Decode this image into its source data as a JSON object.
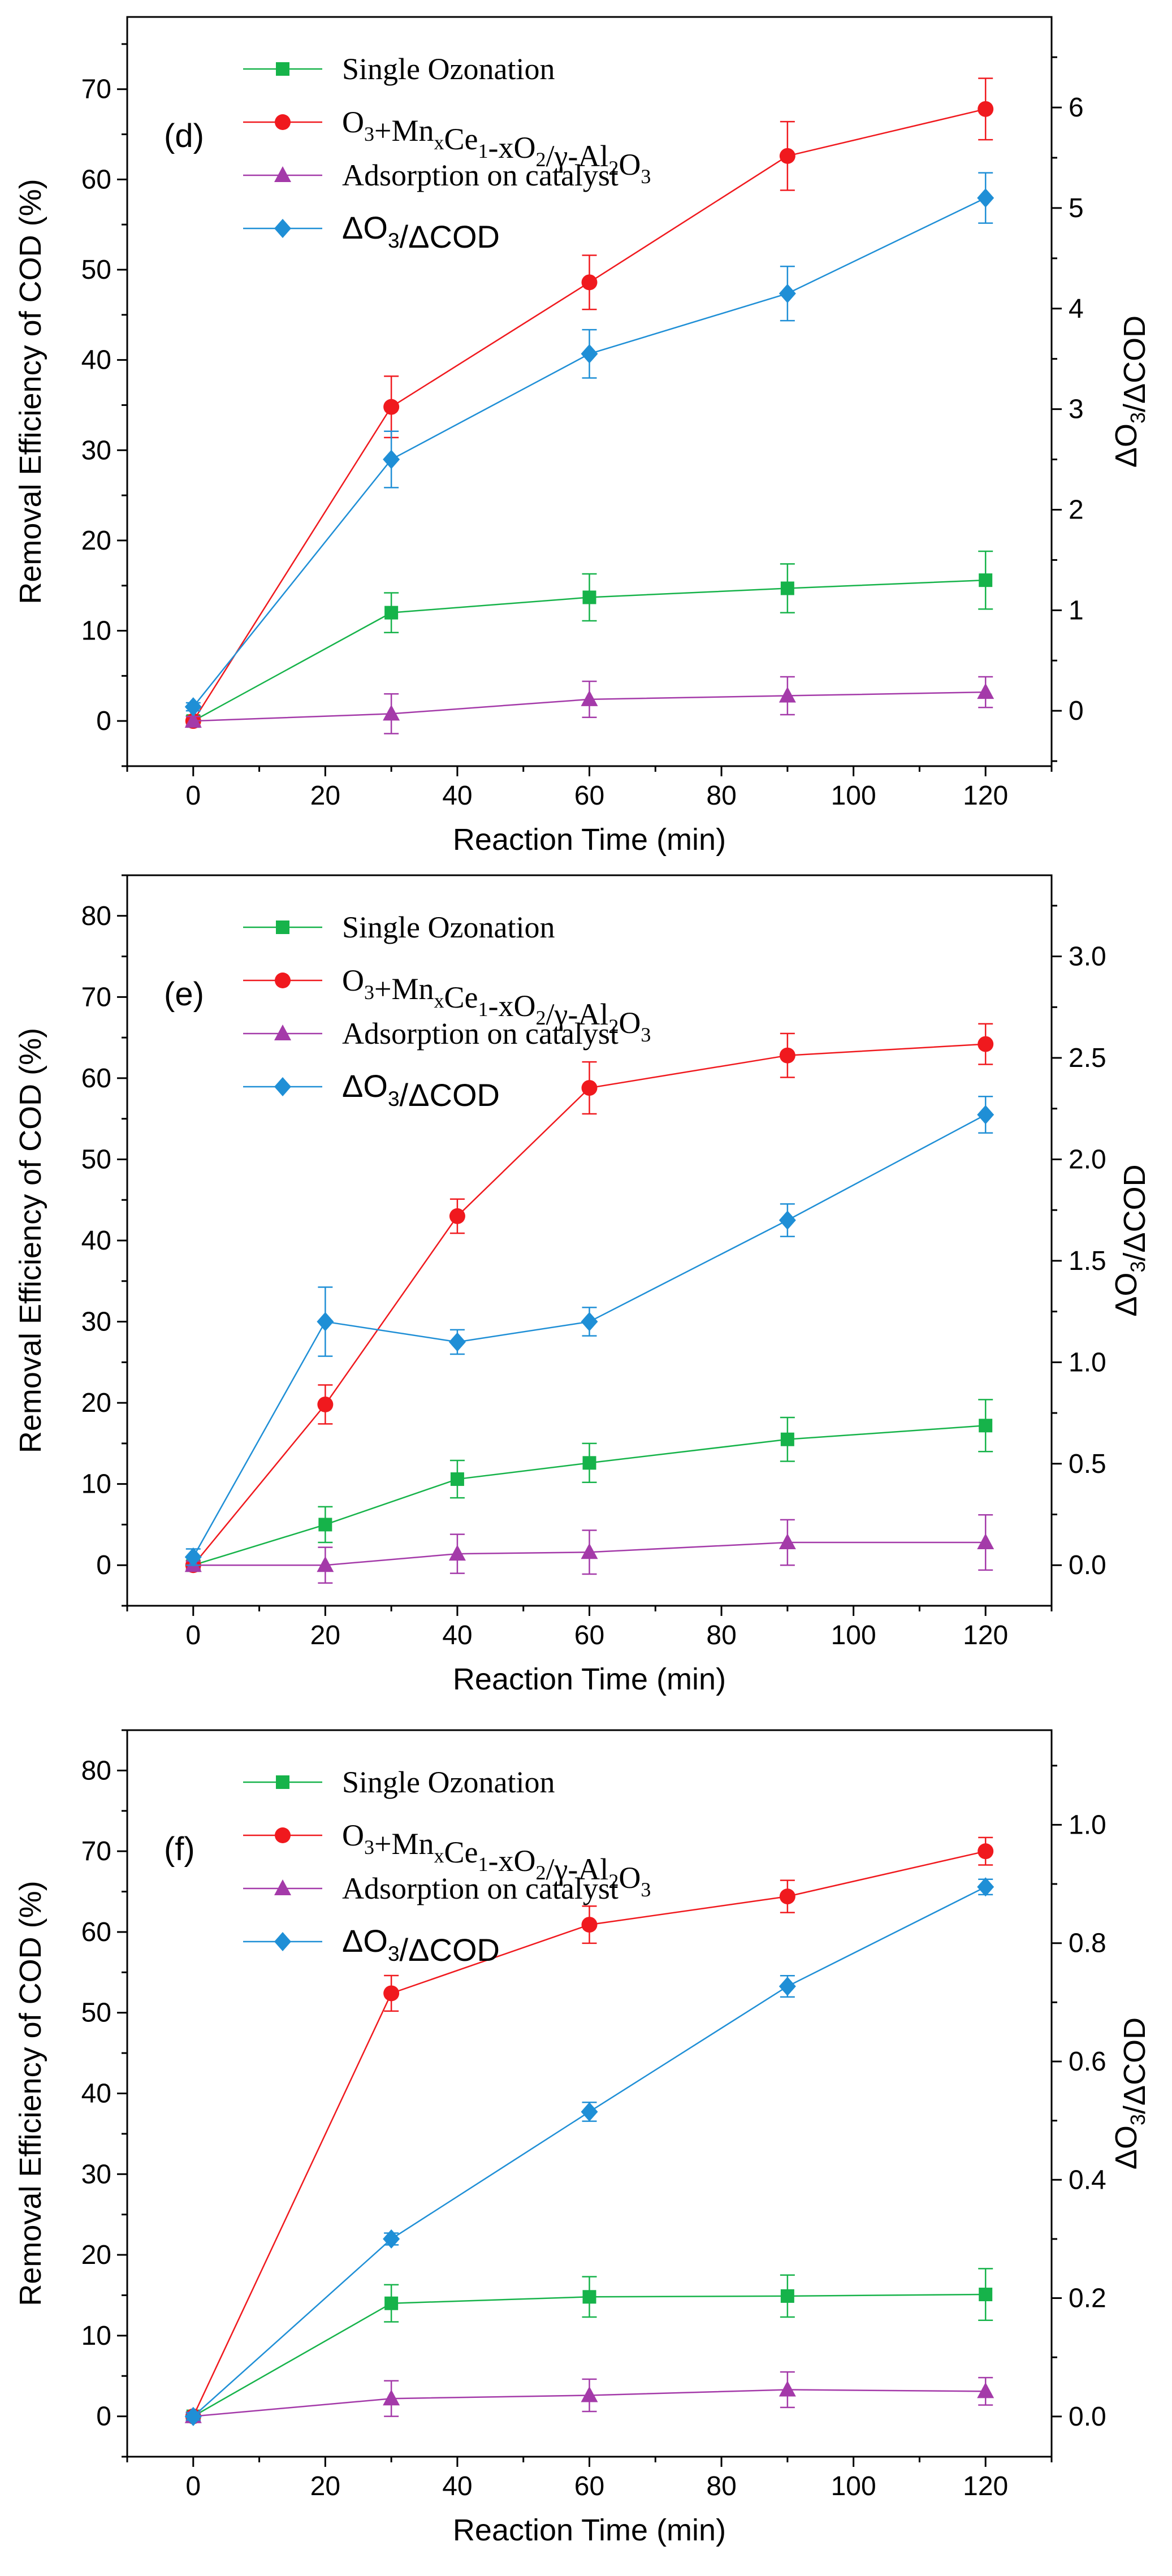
{
  "chart_data": [
    {
      "type": "line",
      "panel_label": "(d)",
      "x": [
        0,
        30,
        60,
        90,
        120
      ],
      "xlabel": "Reaction Time (min)",
      "xlim": [
        -10,
        130
      ],
      "xticks": [
        0,
        20,
        40,
        60,
        80,
        100,
        120
      ],
      "ylabel": "Removal Efficiency of COD (%)",
      "ylim": [
        -5,
        78
      ],
      "yticks": [
        0,
        10,
        20,
        30,
        40,
        50,
        60,
        70
      ],
      "y2label": "ΔO3/ΔCOD",
      "y2lim": [
        -0.55,
        6.9
      ],
      "y2ticks": [
        0,
        1,
        2,
        3,
        4,
        5,
        6
      ],
      "y2tick_labels": [
        "0",
        "1",
        "2",
        "3",
        "4",
        "5",
        "6"
      ],
      "legend_position": "top-center",
      "series": [
        {
          "name": "Single Ozonation",
          "axis": "left",
          "color": "#16b34a",
          "marker": "square",
          "values": [
            0,
            12.0,
            13.7,
            14.7,
            15.6
          ],
          "errors": [
            0.6,
            2.2,
            2.6,
            2.7,
            3.2
          ]
        },
        {
          "name": "O3+MnxCe1-xO2/γ-Al2O3",
          "axis": "left",
          "color": "#f0191e",
          "marker": "circle",
          "values": [
            0,
            34.8,
            48.6,
            62.6,
            67.8
          ],
          "errors": [
            0.5,
            3.4,
            3.0,
            3.8,
            3.4
          ]
        },
        {
          "name": "Adsorption on catalyst",
          "axis": "left",
          "color": "#a43aa9",
          "marker": "triangle",
          "values": [
            0,
            0.8,
            2.4,
            2.8,
            3.2
          ],
          "errors": [
            0.5,
            2.2,
            2.0,
            2.1,
            1.7
          ]
        },
        {
          "name": "ΔO3/ΔCOD",
          "axis": "right",
          "color": "#1f8fd6",
          "marker": "diamond",
          "values": [
            0.04,
            2.5,
            3.55,
            4.15,
            5.1
          ],
          "errors": [
            0.04,
            0.28,
            0.24,
            0.27,
            0.25
          ]
        }
      ]
    },
    {
      "type": "line",
      "panel_label": "(e)",
      "x": [
        0,
        20,
        40,
        60,
        90,
        120
      ],
      "xlabel": "Reaction Time (min)",
      "xlim": [
        -10,
        130
      ],
      "xticks": [
        0,
        20,
        40,
        60,
        80,
        100,
        120
      ],
      "ylabel": "Removal Efficiency of COD (%)",
      "ylim": [
        -5,
        85
      ],
      "yticks": [
        0,
        10,
        20,
        30,
        40,
        50,
        60,
        70,
        80
      ],
      "y2label": "ΔO3/ΔCOD",
      "y2lim": [
        -0.2,
        3.4
      ],
      "y2ticks": [
        0.0,
        0.5,
        1.0,
        1.5,
        2.0,
        2.5,
        3.0
      ],
      "y2tick_labels": [
        "0.0",
        "0.5",
        "1.0",
        "1.5",
        "2.0",
        "2.5",
        "3.0"
      ],
      "legend_position": "top-center",
      "series": [
        {
          "name": "Single Ozonation",
          "axis": "left",
          "color": "#16b34a",
          "marker": "square",
          "values": [
            0,
            5.0,
            10.6,
            12.6,
            15.5,
            17.2
          ],
          "errors": [
            0.6,
            2.2,
            2.3,
            2.4,
            2.7,
            3.2
          ]
        },
        {
          "name": "O3+MnxCe1-xO2/γ-Al2O3",
          "axis": "left",
          "color": "#f0191e",
          "marker": "circle",
          "values": [
            0,
            19.8,
            43.0,
            58.8,
            62.8,
            64.2
          ],
          "errors": [
            0.5,
            2.4,
            2.1,
            3.2,
            2.7,
            2.5
          ]
        },
        {
          "name": "Adsorption on catalyst",
          "axis": "left",
          "color": "#a43aa9",
          "marker": "triangle",
          "values": [
            0,
            0,
            1.4,
            1.6,
            2.8,
            2.8
          ],
          "errors": [
            0.5,
            2.2,
            2.4,
            2.7,
            2.8,
            3.4
          ]
        },
        {
          "name": "ΔO3/ΔCOD",
          "axis": "right",
          "color": "#1f8fd6",
          "marker": "diamond",
          "values": [
            0.04,
            1.2,
            1.1,
            1.2,
            1.7,
            2.22
          ],
          "errors": [
            0.04,
            0.17,
            0.06,
            0.07,
            0.08,
            0.09
          ]
        }
      ]
    },
    {
      "type": "line",
      "panel_label": "(f)",
      "x": [
        0,
        30,
        60,
        90,
        120
      ],
      "xlabel": "Reaction Time (min)",
      "xlim": [
        -10,
        130
      ],
      "xticks": [
        0,
        20,
        40,
        60,
        80,
        100,
        120
      ],
      "ylabel": "Removal Efficiency of COD (%)",
      "ylim": [
        -5,
        85
      ],
      "yticks": [
        0,
        10,
        20,
        30,
        40,
        50,
        60,
        70,
        80
      ],
      "y2label": "ΔO3/ΔCOD",
      "y2lim": [
        -0.068,
        1.16
      ],
      "y2ticks": [
        0.0,
        0.2,
        0.4,
        0.6,
        0.8,
        1.0
      ],
      "y2tick_labels": [
        "0.0",
        "0.2",
        "0.4",
        "0.6",
        "0.8",
        "1.0"
      ],
      "legend_position": "top-center",
      "series": [
        {
          "name": "Single Ozonation",
          "axis": "left",
          "color": "#16b34a",
          "marker": "square",
          "values": [
            0,
            14.0,
            14.8,
            14.9,
            15.1
          ],
          "errors": [
            0.5,
            2.3,
            2.5,
            2.6,
            3.2
          ]
        },
        {
          "name": "O3+MnxCe1-xO2/γ-Al2O3",
          "axis": "left",
          "color": "#f0191e",
          "marker": "circle",
          "values": [
            0,
            52.4,
            60.9,
            64.4,
            70.0
          ],
          "errors": [
            0.5,
            2.2,
            2.3,
            2.0,
            1.7
          ]
        },
        {
          "name": "Adsorption on catalyst",
          "axis": "left",
          "color": "#a43aa9",
          "marker": "triangle",
          "values": [
            0,
            2.2,
            2.6,
            3.3,
            3.1
          ],
          "errors": [
            0.5,
            2.2,
            2.0,
            2.2,
            1.7
          ]
        },
        {
          "name": "ΔO3/ΔCOD",
          "axis": "right",
          "color": "#1f8fd6",
          "marker": "diamond",
          "values": [
            0.0,
            0.3,
            0.515,
            0.727,
            0.895
          ],
          "errors": [
            0.006,
            0.01,
            0.016,
            0.018,
            0.013
          ]
        }
      ]
    }
  ]
}
